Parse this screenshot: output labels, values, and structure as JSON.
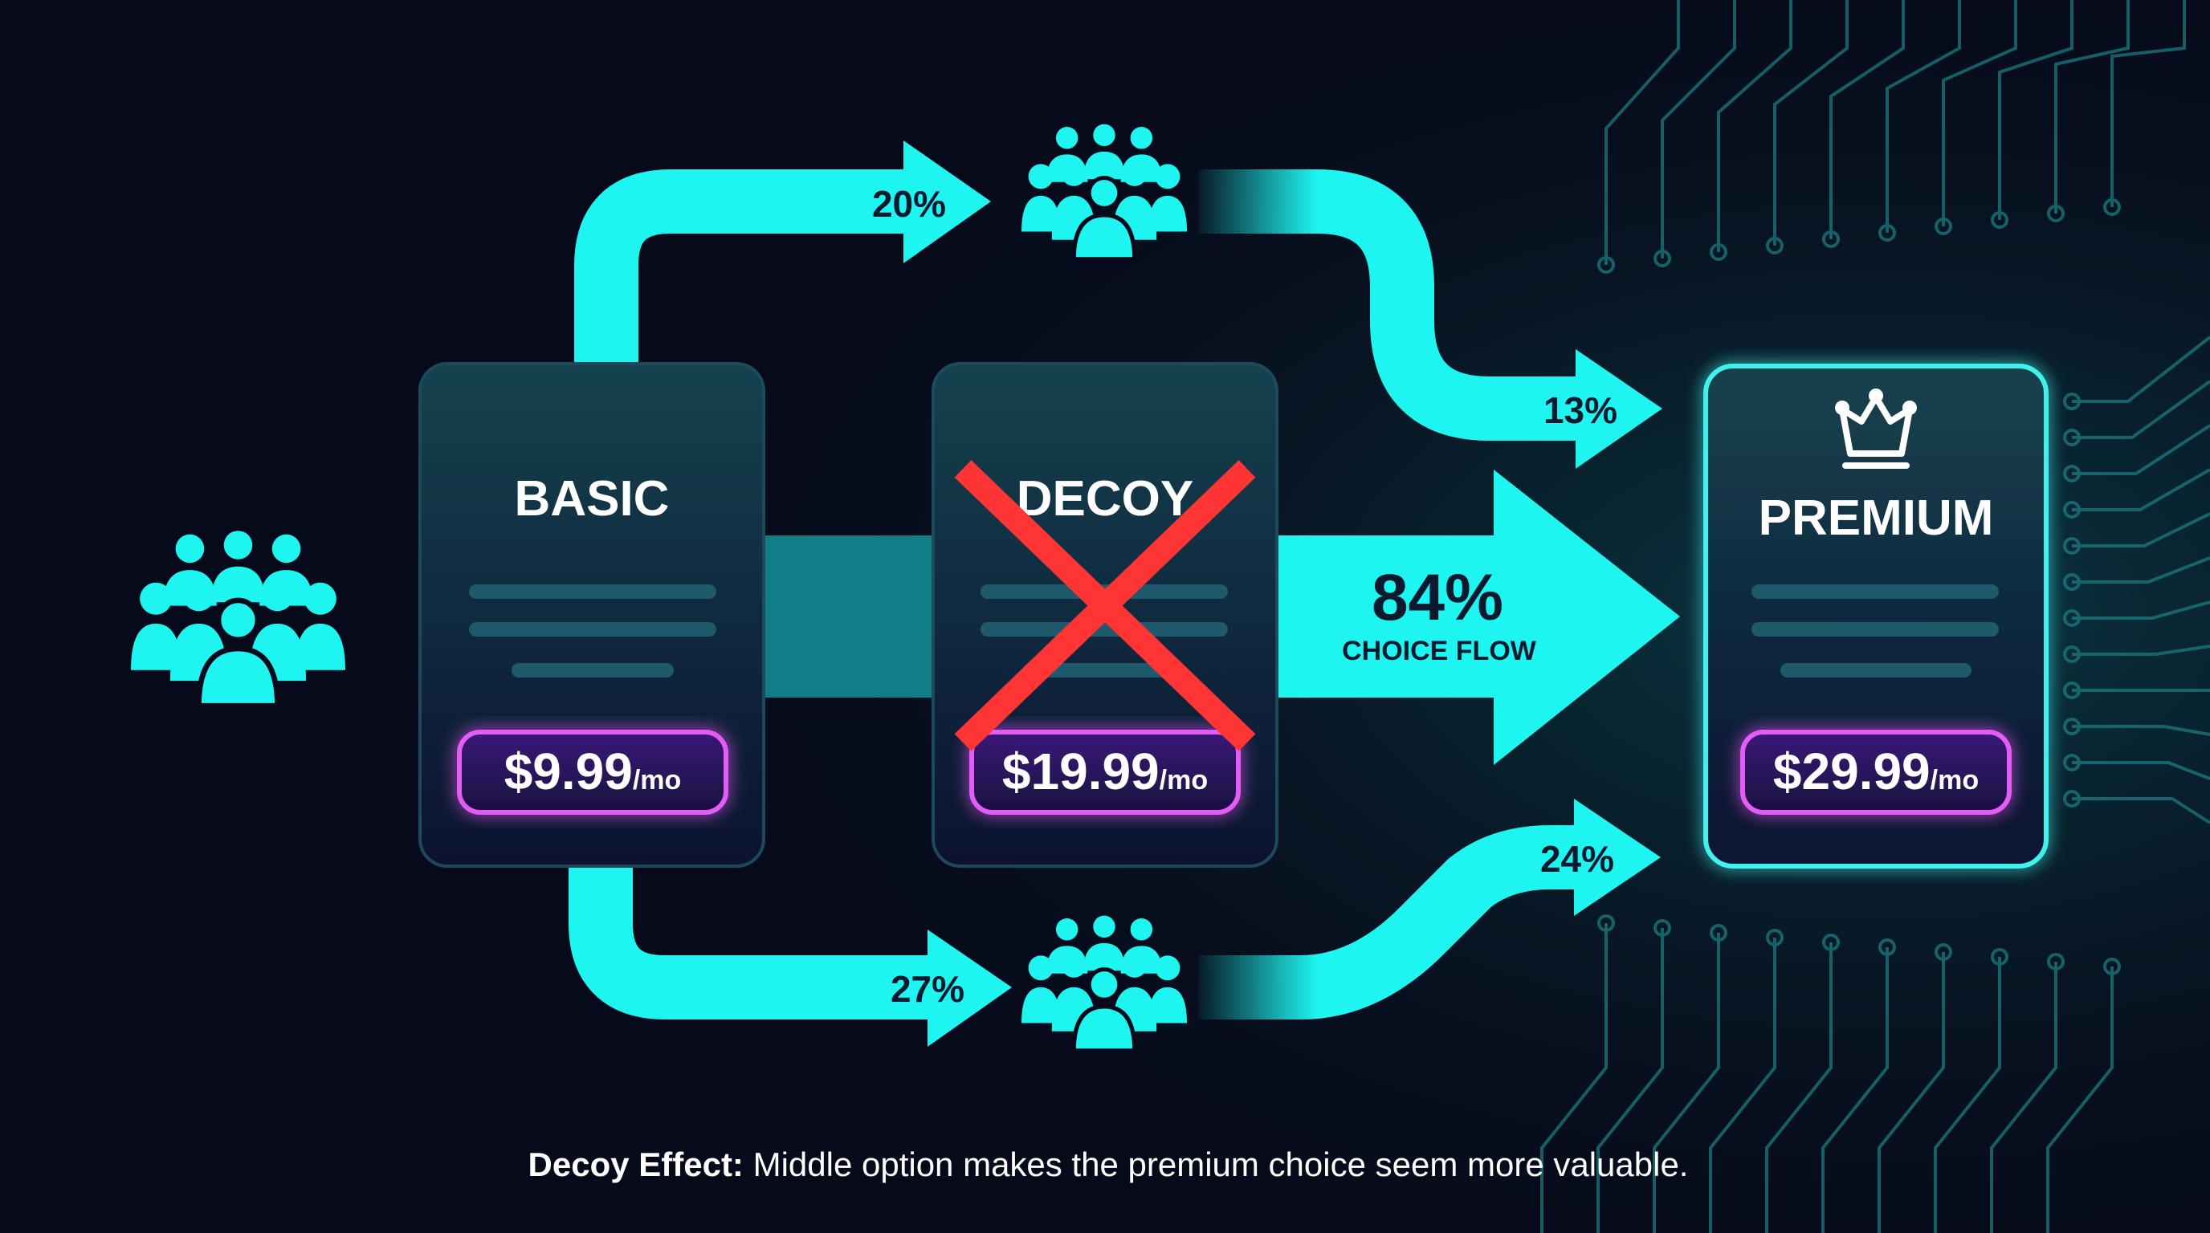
{
  "colors": {
    "flow": "#1ef5f0",
    "card_border_premium": "#3ff2ee",
    "price_border": "#e45cf6",
    "cross": "#ff3434",
    "background": "#070a1a"
  },
  "cards": [
    {
      "title": "BASIC",
      "price": "$9.99",
      "unit": "/mo"
    },
    {
      "title": "DECOY",
      "price": "$19.99",
      "unit": "/mo",
      "crossed_out": true
    },
    {
      "title": "PREMIUM",
      "price": "$29.99",
      "unit": "/mo",
      "icon": "crown-icon",
      "highlighted": true
    }
  ],
  "flows": {
    "basic_to_top_group": "20%",
    "top_group_to_premium": "13%",
    "basic_to_bottom_group": "27%",
    "bottom_group_to_premium": "24%",
    "main_value": "84%",
    "main_label": "CHOICE FLOW"
  },
  "caption": {
    "bold": "Decoy Effect:",
    "text": " Middle option makes the premium choice seem more valuable."
  }
}
